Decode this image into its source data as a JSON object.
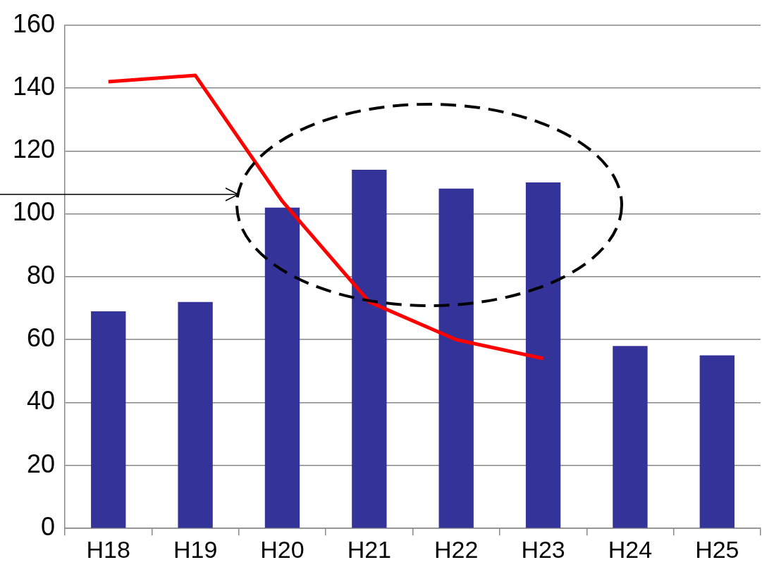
{
  "chart_data": {
    "type": "bar",
    "categories": [
      "H18",
      "H19",
      "H20",
      "H21",
      "H22",
      "H23",
      "H24",
      "H25"
    ],
    "series": [
      {
        "color": "#333399",
        "values": [
          69,
          72,
          102,
          114,
          108,
          110,
          58,
          55
        ]
      },
      {
        "type": "line",
        "color": "#ff0000",
        "values": [
          142,
          144,
          104,
          72,
          60,
          54,
          null,
          null
        ]
      }
    ],
    "ylim": [
      0,
      160
    ],
    "yticks": [
      0,
      20,
      40,
      60,
      80,
      100,
      120,
      140,
      160
    ],
    "grid": "y",
    "legend": false,
    "marker": "none",
    "line_style": "solid"
  }
}
